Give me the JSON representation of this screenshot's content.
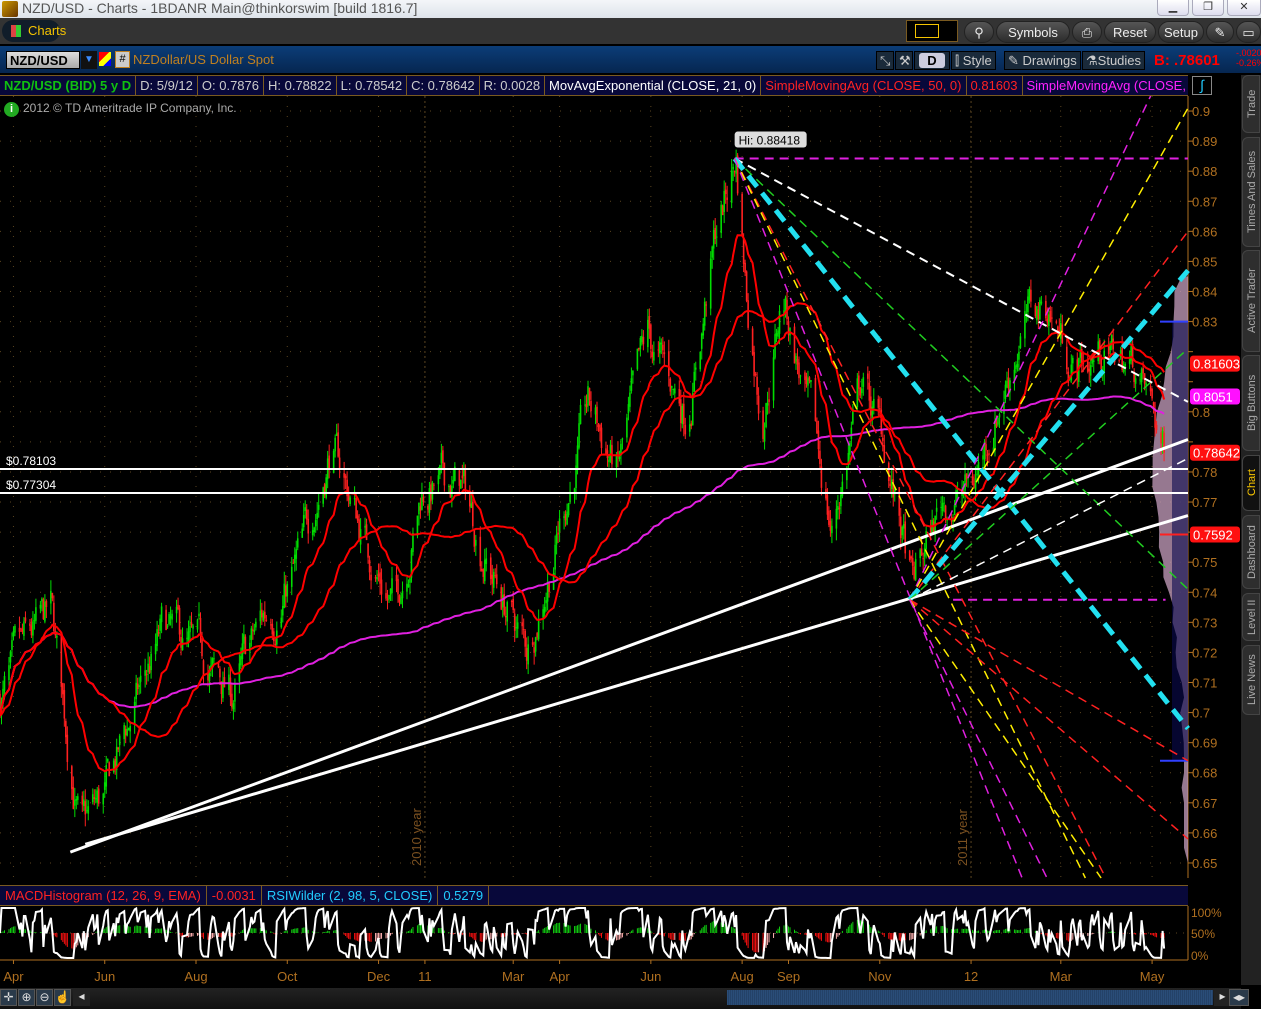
{
  "window": {
    "title": "NZD/USD - Charts - 1BDANR Main@thinkorswim [build 1816.7]"
  },
  "toolbar": {
    "tab": "Charts",
    "symbols": "Symbols",
    "reset": "Reset",
    "setup": "Setup"
  },
  "header": {
    "symbol": "NZD/USD",
    "description": "NZDollar/US Dollar Spot",
    "aggregation": "D",
    "style": "Style",
    "drawings": "Drawings",
    "studies": "Studies",
    "bid": "B: .78601",
    "change": "-.0020",
    "change_pct": "-0.26%"
  },
  "studybar": {
    "items": [
      "NZD/USD (BID) 5 y D",
      "D: 5/9/12",
      "O: 0.7876",
      "H: 0.78822",
      "L: 0.78542",
      "C: 0.78642",
      "R: 0.0028",
      "MovAvgExponential (CLOSE, 21, 0)",
      "SimpleMovingAvg (CLOSE, 50, 0)",
      "0.81603",
      "SimpleMovingAvg (CLOSE, 2..."
    ]
  },
  "copyright": "2012 © TD Ameritrade IP Company, Inc.",
  "sidetabs": [
    "Trade",
    "Times And Sales",
    "Active Trader",
    "Big Buttons",
    "Chart",
    "Dashboard",
    "Level II",
    "Live News"
  ],
  "lowerbar": {
    "items": [
      "MACDHistogram (12, 26, 9, EMA)",
      "-0.0031",
      "RSIWilder (2, 98, 5, CLOSE)",
      "0.5279"
    ]
  },
  "colors": {
    "up": "#00dd00",
    "down": "#ff2020",
    "ema21": "#ff0000",
    "sma50": "#ff0000",
    "sma200": "#e020e0",
    "axis": "#b07020"
  },
  "chart_data": {
    "type": "candlestick",
    "ylim": [
      0.645,
      0.905
    ],
    "yticks": [
      "0.9",
      "0.89",
      "0.88",
      "0.87",
      "0.86",
      "0.85",
      "0.84",
      "0.83",
      "0.82",
      "0.81",
      "0.8",
      "0.79",
      "0.78",
      "0.77",
      "0.76",
      "0.75",
      "0.74",
      "0.73",
      "0.72",
      "0.71",
      "0.7",
      "0.69",
      "0.68",
      "0.67",
      "0.66",
      "0.65"
    ],
    "xlim": [
      "2010-03-23",
      "2012-05-25"
    ],
    "xticks": [
      [
        "2010-04-01",
        "Apr"
      ],
      [
        "2010-06-01",
        "Jun"
      ],
      [
        "2010-08-01",
        "Aug"
      ],
      [
        "2010-10-01",
        "Oct"
      ],
      [
        "2010-12-01",
        "Dec"
      ],
      [
        "2011-01-01",
        "11"
      ],
      [
        "2011-03-01",
        "Mar"
      ],
      [
        "2011-04-01",
        "Apr"
      ],
      [
        "2011-06-01",
        "Jun"
      ],
      [
        "2011-08-01",
        "Aug"
      ],
      [
        "2011-09-01",
        "Sep"
      ],
      [
        "2011-11-01",
        "Nov"
      ],
      [
        "2012-01-01",
        "12"
      ],
      [
        "2012-03-01",
        "Mar"
      ],
      [
        "2012-05-01",
        "May"
      ]
    ],
    "year_labels": [
      [
        "2010-01-01",
        "2010 year"
      ],
      [
        "2011-01-01",
        "2011 year"
      ]
    ],
    "close_path": [
      [
        "2010-03-23",
        0.705
      ],
      [
        "2010-04-26",
        0.73
      ],
      [
        "2010-05-16",
        0.66
      ],
      [
        "2010-06-01",
        0.67
      ],
      [
        "2010-06-20",
        0.7
      ],
      [
        "2010-07-10",
        0.725
      ],
      [
        "2010-08-05",
        0.715
      ],
      [
        "2010-08-25",
        0.705
      ],
      [
        "2010-09-15",
        0.73
      ],
      [
        "2010-10-10",
        0.75
      ],
      [
        "2010-10-30",
        0.79
      ],
      [
        "2010-11-20",
        0.76
      ],
      [
        "2010-12-12",
        0.735
      ],
      [
        "2010-12-30",
        0.775
      ],
      [
        "2011-01-25",
        0.775
      ],
      [
        "2011-02-20",
        0.74
      ],
      [
        "2011-03-10",
        0.72
      ],
      [
        "2011-03-30",
        0.76
      ],
      [
        "2011-04-20",
        0.8
      ],
      [
        "2011-05-10",
        0.78
      ],
      [
        "2011-05-30",
        0.82
      ],
      [
        "2011-06-25",
        0.8
      ],
      [
        "2011-07-15",
        0.86
      ],
      [
        "2011-07-28",
        0.884
      ],
      [
        "2011-08-04",
        0.84
      ],
      [
        "2011-08-14",
        0.8
      ],
      [
        "2011-08-28",
        0.84
      ],
      [
        "2011-09-10",
        0.81
      ],
      [
        "2011-09-30",
        0.76
      ],
      [
        "2011-10-20",
        0.81
      ],
      [
        "2011-11-03",
        0.79
      ],
      [
        "2011-11-23",
        0.74
      ],
      [
        "2011-12-13",
        0.77
      ],
      [
        "2012-01-02",
        0.775
      ],
      [
        "2012-01-23",
        0.81
      ],
      [
        "2012-02-05",
        0.83
      ],
      [
        "2012-02-22",
        0.835
      ],
      [
        "2012-03-10",
        0.815
      ],
      [
        "2012-03-30",
        0.82
      ],
      [
        "2012-04-20",
        0.815
      ],
      [
        "2012-05-09",
        0.7864
      ]
    ],
    "high_label": "Hi: 0.88418",
    "price_labels": [
      {
        "text": "$0.78103",
        "price": 0.781
      },
      {
        "text": "$0.77304",
        "price": 0.773
      }
    ],
    "bubbles": [
      {
        "text": "0.81603",
        "price": 0.816,
        "color": "#ff1010"
      },
      {
        "text": "0.8051",
        "price": 0.8051,
        "color": "#ff10ff"
      },
      {
        "text": "0.78642",
        "price": 0.7864,
        "color": "#ff1010"
      },
      {
        "text": "0.7592",
        "price": 0.7592,
        "color": "#ff1010"
      }
    ],
    "drawings": [
      {
        "from": [
          "2010-03-23",
          0.781
        ],
        "to": [
          "2012-05-25",
          0.781
        ],
        "color": "#ffffff",
        "dash": false,
        "w": 2
      },
      {
        "from": [
          "2010-03-23",
          0.773
        ],
        "to": [
          "2012-05-25",
          0.773
        ],
        "color": "#ffffff",
        "dash": false,
        "w": 2
      },
      {
        "from": [
          "2010-05-09",
          0.6536
        ],
        "to": [
          "2012-05-25",
          0.7908
        ],
        "color": "#ffffff",
        "dash": false,
        "w": 3
      },
      {
        "from": [
          "2010-05-19",
          0.6562
        ],
        "to": [
          "2012-05-25",
          0.7655
        ],
        "color": "#ffffff",
        "dash": false,
        "w": 3
      },
      {
        "from": [
          "2011-07-27",
          0.8842
        ],
        "to": [
          "2012-05-25",
          0.8842
        ],
        "color": "#e020e0",
        "dash": true,
        "w": 2
      },
      {
        "from": [
          "2011-12-20",
          0.7375
        ],
        "to": [
          "2012-05-10",
          0.7375
        ],
        "color": "#e020e0",
        "dash": true,
        "w": 2
      },
      {
        "from": [
          "2011-07-27",
          0.8842
        ],
        "to": [
          "2012-05-25",
          0.8033
        ],
        "color": "#ffffff",
        "dash": true,
        "w": 2
      },
      {
        "from": [
          "2011-07-27",
          0.8842
        ],
        "to": [
          "2012-05-25",
          0.741
        ],
        "color": "#20cc20",
        "dash": true,
        "w": 1.5
      },
      {
        "from": [
          "2011-07-27",
          0.8842
        ],
        "to": [
          "2012-05-25",
          0.6947
        ],
        "color": "#22e0f0",
        "dash": true,
        "w": 5
      },
      {
        "from": [
          "2011-07-27",
          0.8842
        ],
        "to": [
          "2012-05-25",
          0.592
        ],
        "color": "#ff2020",
        "dash": true,
        "w": 1.5
      },
      {
        "from": [
          "2011-07-27",
          0.8842
        ],
        "to": [
          "2012-05-25",
          0.575
        ],
        "color": "#ffee00",
        "dash": true,
        "w": 1.5
      },
      {
        "from": [
          "2011-07-27",
          0.8842
        ],
        "to": [
          "2012-05-25",
          0.507
        ],
        "color": "#e020e0",
        "dash": true,
        "w": 1.5
      },
      {
        "from": [
          "2011-11-21",
          0.7375
        ],
        "to": [
          "2012-05-25",
          0.931
        ],
        "color": "#e020e0",
        "dash": true,
        "w": 1.5
      },
      {
        "from": [
          "2011-11-21",
          0.7375
        ],
        "to": [
          "2012-05-25",
          0.901
        ],
        "color": "#ffee00",
        "dash": true,
        "w": 1.5
      },
      {
        "from": [
          "2011-11-21",
          0.7375
        ],
        "to": [
          "2012-05-25",
          0.86
        ],
        "color": "#ff2020",
        "dash": true,
        "w": 1.5
      },
      {
        "from": [
          "2011-11-21",
          0.7375
        ],
        "to": [
          "2012-05-25",
          0.847
        ],
        "color": "#22e0f0",
        "dash": true,
        "w": 5
      },
      {
        "from": [
          "2011-11-21",
          0.7375
        ],
        "to": [
          "2012-05-25",
          0.821
        ],
        "color": "#20cc20",
        "dash": true,
        "w": 1.5
      },
      {
        "from": [
          "2011-11-21",
          0.7375
        ],
        "to": [
          "2012-05-25",
          0.7845
        ],
        "color": "#ffffff",
        "dash": true,
        "w": 1.5
      },
      {
        "from": [
          "2011-11-21",
          0.7375
        ],
        "to": [
          "2012-05-25",
          0.684
        ],
        "color": "#ff2020",
        "dash": true,
        "w": 1.5
      },
      {
        "from": [
          "2011-11-21",
          0.7375
        ],
        "to": [
          "2012-05-25",
          0.658
        ],
        "color": "#ff2020",
        "dash": true,
        "w": 1.5
      },
      {
        "from": [
          "2011-11-21",
          0.7375
        ],
        "to": [
          "2012-05-25",
          0.603
        ],
        "color": "#ffee00",
        "dash": true,
        "w": 1.5
      },
      {
        "from": [
          "2011-11-21",
          0.7375
        ],
        "to": [
          "2012-05-25",
          0.55
        ],
        "color": "#e020e0",
        "dash": true,
        "w": 1.5
      }
    ],
    "lower_yticks": [
      "100%",
      "50%",
      "0%"
    ]
  }
}
